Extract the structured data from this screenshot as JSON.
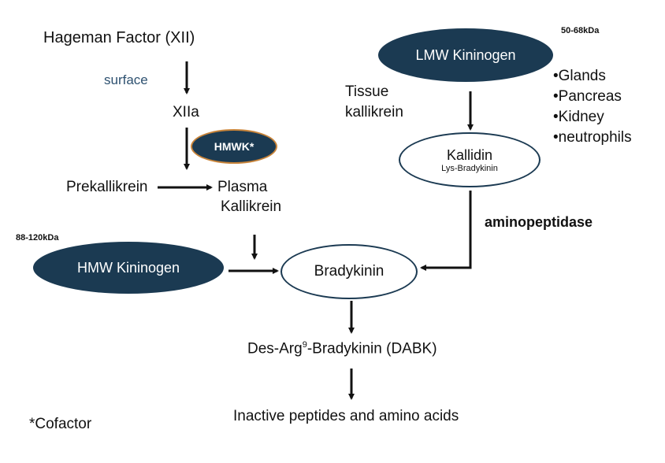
{
  "nodes": {
    "hageman": "Hageman Factor (XII)",
    "surface": "surface",
    "xiia": "XIIa",
    "hmwk_cofactor": "HMWK*",
    "prekallikrein": "Prekallikrein",
    "plasma_kallikrein_1": "Plasma",
    "plasma_kallikrein_2": "Kallikrein",
    "hmw_kininogen": "HMW Kininogen",
    "hmw_mass": "88-120kDa",
    "bradykinin": "Bradykinin",
    "lmw_kininogen": "LMW Kininogen",
    "lmw_mass": "50-68kDa",
    "tissue_kallikrein_1": "Tissue",
    "tissue_kallikrein_2": "kallikrein",
    "kallidin": "Kallidin",
    "lys_bradykinin": "Lys-Bradykinin",
    "aminopeptidase": "aminopeptidase",
    "dabk_prefix": "Des-Arg",
    "dabk_sup": "9",
    "dabk_suffix": "-Bradykinin (DABK)",
    "inactive": "Inactive peptides and amino acids",
    "cofactor_note": "*Cofactor"
  },
  "sources": [
    "•Glands",
    "•Pancreas",
    "•Kidney",
    "•neutrophils"
  ],
  "colors": {
    "ellipse_fill": "#1b3a52",
    "hmwk_border": "#c8843a",
    "surface_text": "#2e5170"
  }
}
